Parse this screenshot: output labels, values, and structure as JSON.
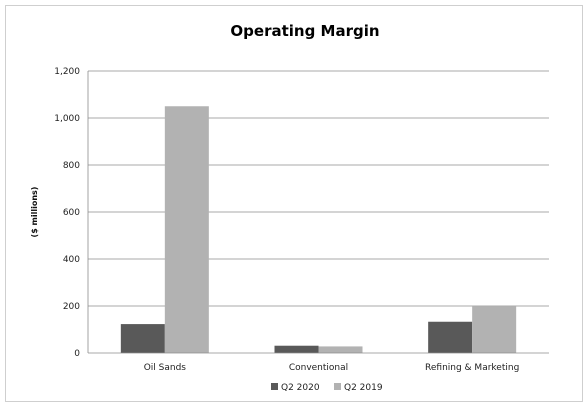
{
  "chart_data": {
    "type": "bar",
    "title": "Operating Margin",
    "xlabel": "",
    "ylabel": "($ millions)",
    "categories": [
      "Oil Sands",
      "Conventional",
      "Refining & Marketing"
    ],
    "series": [
      {
        "name": "Q2 2020",
        "values": [
          123,
          31,
          133
        ],
        "color": "#595959"
      },
      {
        "name": "Q2 2019",
        "values": [
          1050,
          28,
          199
        ],
        "color": "#b2b2b2"
      }
    ],
    "ylim": [
      0,
      1200
    ],
    "yticks": [
      0,
      200,
      400,
      600,
      800,
      1000,
      1200
    ],
    "ytick_labels": [
      "0",
      "200",
      "400",
      "600",
      "800",
      "1,000",
      "1,200"
    ],
    "grid": true,
    "legend_position": "bottom"
  }
}
